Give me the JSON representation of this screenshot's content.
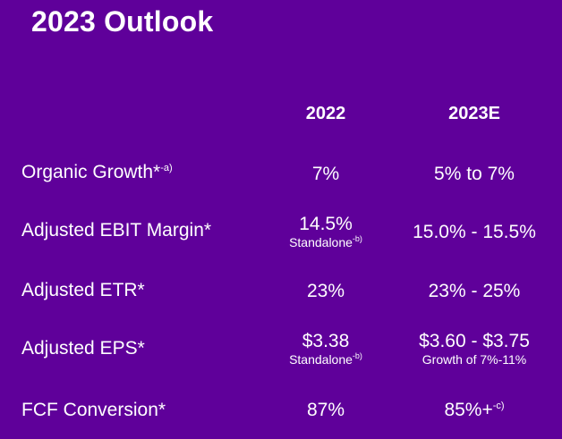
{
  "title": "2023 Outlook",
  "columns": [
    "2022",
    "2023E"
  ],
  "rows": [
    {
      "label": "Organic Growth*",
      "label_note": "-a)",
      "v2022": "7%",
      "v2023": "5% to 7%"
    },
    {
      "label": "Adjusted EBIT Margin*",
      "v2022": "14.5%",
      "v2022_sub": "Standalone",
      "v2022_sub_note": "-b)",
      "v2023": "15.0% - 15.5%"
    },
    {
      "label": "Adjusted ETR*",
      "v2022": "23%",
      "v2023": "23% - 25%"
    },
    {
      "label": "Adjusted EPS*",
      "v2022": "$3.38",
      "v2022_sub": "Standalone",
      "v2022_sub_note": "-b)",
      "v2023": "$3.60 - $3.75",
      "v2023_sub": "Growth of 7%-11%"
    },
    {
      "label": "FCF Conversion*",
      "v2022": "87%",
      "v2023": "85%+",
      "v2023_note": "-c)"
    }
  ],
  "colors": {
    "background": "#5f009a",
    "text": "#ffffff"
  }
}
